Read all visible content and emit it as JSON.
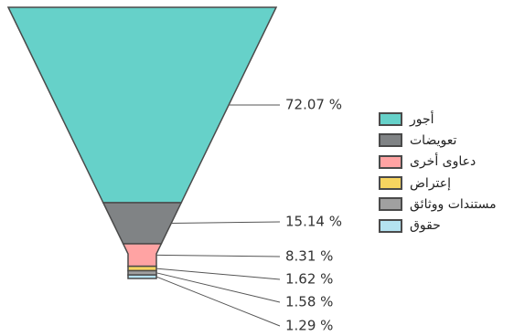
{
  "chart_data": {
    "type": "funnel",
    "series": [
      {
        "label": "أجور",
        "value": 72.07,
        "display": "72.07 %",
        "color": "#66d1c9"
      },
      {
        "label": "تعويضات",
        "value": 15.14,
        "display": "15.14 %",
        "color": "#808385"
      },
      {
        "label": "دعاوى أخرى",
        "value": 8.31,
        "display": "8.31 %",
        "color": "#ffa3a3"
      },
      {
        "label": "إعتراض",
        "value": 1.62,
        "display": "1.62 %",
        "color": "#f7d560"
      },
      {
        "label": "مستندات ووثائق",
        "value": 1.58,
        "display": "1.58 %",
        "color": "#a0a0a0"
      },
      {
        "label": "حقوق",
        "value": 1.29,
        "display": "1.29 %",
        "color": "#b4e2f0"
      }
    ],
    "legend_position": "right"
  }
}
